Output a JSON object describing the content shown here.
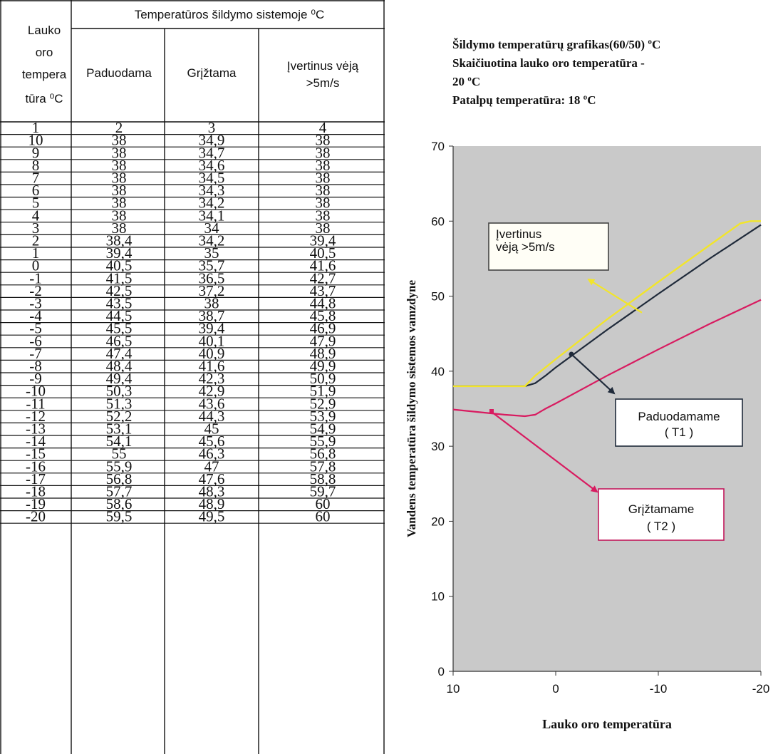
{
  "table": {
    "col1_header_lines": [
      "Lauko",
      "oro",
      "tempera",
      "tūra ⁰C"
    ],
    "group_header": "Temperatūros šildymo sistemoje  ⁰C",
    "col_headers": [
      "Paduodama",
      "Grįžtama",
      "Įvertinus vėją >5m/s"
    ],
    "col_header3_lines": [
      "Įvertinus vėją",
      ">5m/s"
    ],
    "col_numbers": [
      "1",
      "2",
      "3",
      "4"
    ],
    "rows": [
      [
        "10",
        "38",
        "34,9",
        "38"
      ],
      [
        "9",
        "38",
        "34,7",
        "38"
      ],
      [
        "8",
        "38",
        "34,6",
        "38"
      ],
      [
        "7",
        "38",
        "34,5",
        "38"
      ],
      [
        "6",
        "38",
        "34,3",
        "38"
      ],
      [
        "5",
        "38",
        "34,2",
        "38"
      ],
      [
        "4",
        "38",
        "34,1",
        "38"
      ],
      [
        "3",
        "38",
        "34",
        "38"
      ],
      [
        "2",
        "38,4",
        "34,2",
        "39,4"
      ],
      [
        "1",
        "39,4",
        "35",
        "40,5"
      ],
      [
        "0",
        "40,5",
        "35,7",
        "41,6"
      ],
      [
        "-1",
        "41,5",
        "36,5",
        "42,7"
      ],
      [
        "-2",
        "42,5",
        "37,2",
        "43,7"
      ],
      [
        "-3",
        "43,5",
        "38",
        "44,8"
      ],
      [
        "-4",
        "44,5",
        "38,7",
        "45,8"
      ],
      [
        "-5",
        "45,5",
        "39,4",
        "46,9"
      ],
      [
        "-6",
        "46,5",
        "40,1",
        "47,9"
      ],
      [
        "-7",
        "47,4",
        "40,9",
        "48,9"
      ],
      [
        "-8",
        "48,4",
        "41,6",
        "49,9"
      ],
      [
        "-9",
        "49,4",
        "42,3",
        "50,9"
      ],
      [
        "-10",
        "50,3",
        "42,9",
        "51,9"
      ],
      [
        "-11",
        "51,3",
        "43,6",
        "52,9"
      ],
      [
        "-12",
        "52,2",
        "44,3",
        "53,9"
      ],
      [
        "-13",
        "53,1",
        "45",
        "54,9"
      ],
      [
        "-14",
        "54,1",
        "45,6",
        "55,9"
      ],
      [
        "-15",
        "55",
        "46,3",
        "56,8"
      ],
      [
        "-16",
        "55,9",
        "47",
        "57,8"
      ],
      [
        "-17",
        "56,8",
        "47,6",
        "58,8"
      ],
      [
        "-18",
        "57,7",
        "48,3",
        "59,7"
      ],
      [
        "-19",
        "58,6",
        "48,9",
        "60"
      ],
      [
        "-20",
        "59,5",
        "49,5",
        "60"
      ]
    ]
  },
  "info": {
    "line1": "Šildymo temperatūrų grafikas(60/50) ºC",
    "line2": "Skaičiuotina lauko oro temperatūra        -",
    "line3": "20 ºC",
    "line4": "Patalpų temperatūra: 18 ºC"
  },
  "chart_data": {
    "type": "line",
    "ylabel": "Vandens temperatūra šildymo sistemos vamzdyne",
    "xlabel": "Lauko oro temperatūra",
    "xlim": [
      10,
      -20
    ],
    "ylim": [
      0,
      70
    ],
    "xticks": [
      "10",
      "0",
      "-10",
      "-20"
    ],
    "yticks": [
      "0",
      "10",
      "20",
      "30",
      "40",
      "50",
      "60",
      "70"
    ],
    "plot_background": "#c9c9c9",
    "series": [
      {
        "name": "Paduodamame ( T1 )",
        "color": "#1f2a3a",
        "x": [
          10,
          3,
          2,
          1,
          0,
          -5,
          -10,
          -15,
          -20
        ],
        "y": [
          38,
          38,
          38.4,
          39.4,
          40.5,
          45.5,
          50.3,
          55,
          59.5
        ]
      },
      {
        "name": "Grįžtamame ( T2 )",
        "color": "#d81b60",
        "x": [
          10,
          5,
          3,
          2,
          1,
          0,
          -5,
          -10,
          -15,
          -20
        ],
        "y": [
          34.9,
          34.2,
          34,
          34.2,
          35,
          35.7,
          39.4,
          42.9,
          46.3,
          49.5
        ]
      },
      {
        "name": "Įvertinus vėją >5m/s",
        "color": "#f2e52a",
        "x": [
          10,
          3,
          2,
          1,
          0,
          -5,
          -10,
          -15,
          -18,
          -19,
          -20
        ],
        "y": [
          38,
          38,
          39.4,
          40.5,
          41.6,
          46.9,
          51.9,
          56.8,
          59.7,
          60,
          60
        ]
      }
    ],
    "annotations": [
      {
        "label_lines": [
          "Įvertinus",
          "vėją >5m/s"
        ],
        "color": "#f2e52a"
      },
      {
        "label_lines": [
          "Paduodamame",
          "( T1 )"
        ],
        "color": "#1f2a3a"
      },
      {
        "label_lines": [
          "Grįžtamame",
          "( T2 )"
        ],
        "color": "#c2185b"
      }
    ]
  }
}
